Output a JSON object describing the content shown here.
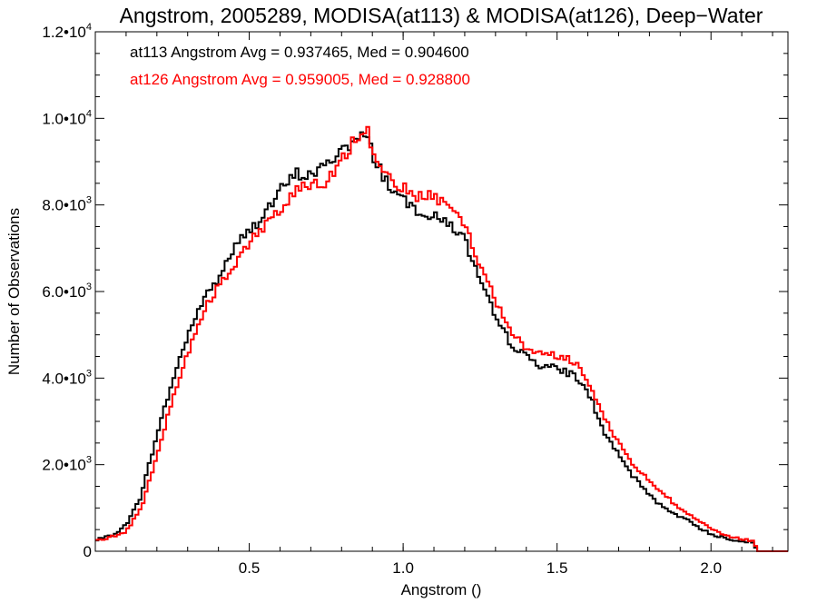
{
  "chart_data": {
    "type": "line",
    "title": "Angstrom, 2005289, MODISA(at113) & MODISA(at126), Deep−Water",
    "xlabel": "Angstrom ()",
    "ylabel": "Number of Observations",
    "xlim": [
      0.0,
      2.25
    ],
    "ylim": [
      0,
      12000
    ],
    "x_ticks": [
      0.5,
      1.0,
      1.5,
      2.0
    ],
    "x_tick_labels": [
      "0.5",
      "1.0",
      "1.5",
      "2.0"
    ],
    "y_ticks": [
      0,
      2000,
      4000,
      6000,
      8000,
      10000,
      12000
    ],
    "y_tick_labels": [
      {
        "mant": "0",
        "exp": ""
      },
      {
        "mant": "2.0•10",
        "exp": "3"
      },
      {
        "mant": "4.0•10",
        "exp": "3"
      },
      {
        "mant": "6.0•10",
        "exp": "3"
      },
      {
        "mant": "8.0•10",
        "exp": "3"
      },
      {
        "mant": "1.0•10",
        "exp": "4"
      },
      {
        "mant": "1.2•10",
        "exp": "4"
      }
    ],
    "grid": false,
    "legend_position": "top-left",
    "series": [
      {
        "name": "at113",
        "color": "#000000",
        "legend_text": "at113 Angstrom Avg = 0.937465, Med = 0.904600",
        "step": 0.01,
        "x": [
          0.0,
          0.05,
          0.1,
          0.15,
          0.2,
          0.25,
          0.3,
          0.35,
          0.4,
          0.45,
          0.5,
          0.55,
          0.6,
          0.65,
          0.7,
          0.75,
          0.8,
          0.85,
          0.88,
          0.9,
          0.95,
          1.0,
          1.05,
          1.1,
          1.15,
          1.2,
          1.25,
          1.3,
          1.35,
          1.4,
          1.45,
          1.5,
          1.55,
          1.6,
          1.65,
          1.7,
          1.75,
          1.8,
          1.85,
          1.9,
          1.95,
          2.0,
          2.05,
          2.1,
          2.14,
          2.15,
          2.25
        ],
        "y": [
          250,
          350,
          600,
          1300,
          2700,
          3900,
          5000,
          5800,
          6300,
          7000,
          7400,
          7800,
          8300,
          8700,
          8700,
          8900,
          9300,
          9500,
          9600,
          9200,
          8500,
          8100,
          7900,
          7700,
          7600,
          7200,
          6200,
          5400,
          4800,
          4500,
          4300,
          4200,
          4100,
          3700,
          2800,
          2200,
          1700,
          1300,
          1000,
          800,
          600,
          400,
          300,
          250,
          200,
          0,
          0
        ]
      },
      {
        "name": "at126",
        "color": "#ff0000",
        "legend_text": "at126 Angstrom Avg = 0.959005, Med = 0.928800",
        "step": 0.01,
        "x": [
          0.0,
          0.05,
          0.1,
          0.15,
          0.2,
          0.25,
          0.3,
          0.35,
          0.4,
          0.45,
          0.5,
          0.55,
          0.6,
          0.65,
          0.7,
          0.75,
          0.8,
          0.85,
          0.88,
          0.9,
          0.95,
          1.0,
          1.05,
          1.1,
          1.15,
          1.2,
          1.25,
          1.3,
          1.35,
          1.4,
          1.45,
          1.5,
          1.55,
          1.6,
          1.65,
          1.7,
          1.75,
          1.8,
          1.85,
          1.9,
          1.95,
          2.0,
          2.05,
          2.1,
          2.14,
          2.15,
          2.25
        ],
        "y": [
          250,
          330,
          450,
          1000,
          2200,
          3500,
          4600,
          5500,
          6100,
          6600,
          7100,
          7500,
          7900,
          8300,
          8500,
          8500,
          9000,
          9600,
          9800,
          9300,
          8700,
          8400,
          8200,
          8200,
          8000,
          7600,
          6600,
          5800,
          5100,
          4700,
          4600,
          4500,
          4400,
          4000,
          3100,
          2500,
          2000,
          1600,
          1300,
          1000,
          750,
          500,
          350,
          280,
          250,
          0,
          0
        ]
      }
    ]
  }
}
